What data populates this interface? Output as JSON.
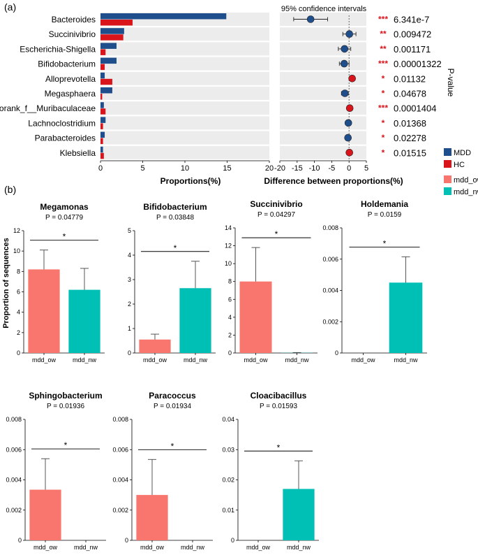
{
  "panel_a": {
    "label": "(a)",
    "ci_title": "95% confidence intervals",
    "pvalue_label": "P-value",
    "legend": [
      {
        "name": "MDD",
        "color": "#1f4e8c"
      },
      {
        "name": "HC",
        "color": "#d9141b"
      }
    ],
    "chart_data": [
      {
        "type": "bar",
        "title": "",
        "xlabel": "Proportions(%)",
        "xlim": [
          0,
          20
        ],
        "xticks": [
          0,
          5,
          10,
          15,
          20
        ],
        "categories": [
          "Bacteroides",
          "Succinivibrio",
          "Escherichia-Shigella",
          "Bifidobacterium",
          "Alloprevotella",
          "Megasphaera",
          "norank_f__Muribaculaceae",
          "Lachnoclostridium",
          "Parabacteroides",
          "Klebsiella"
        ],
        "series": [
          {
            "name": "MDD",
            "color": "#1f4e8c",
            "values": [
              14.9,
              2.8,
              1.9,
              1.9,
              0.5,
              1.4,
              0.4,
              0.6,
              0.5,
              0.3
            ]
          },
          {
            "name": "HC",
            "color": "#d9141b",
            "values": [
              3.8,
              2.7,
              0.6,
              0.5,
              1.4,
              0.2,
              0.6,
              0.3,
              0.3,
              0.4
            ]
          }
        ]
      },
      {
        "type": "scatter",
        "title": "95% confidence intervals",
        "xlabel": "Difference between proportions(%)",
        "xlim": [
          -20,
          5
        ],
        "xticks": [
          -20,
          -15,
          -10,
          -5,
          0,
          5
        ],
        "categories": [
          "Bacteroides",
          "Succinivibrio",
          "Escherichia-Shigella",
          "Bifidobacterium",
          "Alloprevotella",
          "Megasphaera",
          "norank_f__Muribaculaceae",
          "Lachnoclostridium",
          "Parabacteroides",
          "Klebsiella"
        ],
        "difference": [
          -11.1,
          0.1,
          -1.3,
          -1.4,
          0.9,
          -1.2,
          0.2,
          -0.2,
          -0.3,
          0.1
        ],
        "ci_low": [
          -16.0,
          -1.8,
          -3.1,
          -2.8,
          0.3,
          -2.2,
          -0.1,
          -0.6,
          -0.8,
          -0.1
        ],
        "ci_high": [
          -6.2,
          2.0,
          0.5,
          0.0,
          1.5,
          -0.2,
          0.5,
          0.2,
          0.2,
          0.3
        ],
        "enriched_in": [
          "MDD",
          "MDD",
          "MDD",
          "MDD",
          "HC",
          "MDD",
          "HC",
          "MDD",
          "MDD",
          "HC"
        ],
        "stars": [
          "***",
          "**",
          "**",
          "***",
          "*",
          "*",
          "***",
          "*",
          "*",
          "*"
        ],
        "pvalues": [
          "6.341e-7",
          "0.009472",
          "0.001171",
          "0.00001322",
          "0.01132",
          "0.04678",
          "0.0001404",
          "0.01368",
          "0.02278",
          "0.01515"
        ]
      }
    ]
  },
  "panel_b": {
    "label": "(b)",
    "ylabel": "Proportion of sequences",
    "legend": [
      {
        "name": "mdd_ow",
        "color": "#f8766d"
      },
      {
        "name": "mdd_nw",
        "color": "#00bfb4"
      }
    ],
    "chart_data": [
      {
        "type": "bar",
        "title": "Megamonas",
        "subtitle": "P = 0.04779",
        "categories": [
          "mdd_ow",
          "mdd_nw"
        ],
        "values": [
          8.2,
          6.2
        ],
        "errors": [
          1.9,
          2.1
        ],
        "ylim": [
          0,
          12
        ],
        "yticks": [
          "0",
          "2",
          "4",
          "6",
          "8",
          "10",
          "12"
        ],
        "sig": "*"
      },
      {
        "type": "bar",
        "title": "Bifidobacterium",
        "subtitle": "P = 0.03848",
        "categories": [
          "mdd_ow",
          "mdd_nw"
        ],
        "values": [
          0.55,
          2.65
        ],
        "errors": [
          0.22,
          1.1
        ],
        "ylim": [
          0,
          5
        ],
        "yticks": [
          "0",
          "1",
          "2",
          "3",
          "4",
          "5"
        ],
        "sig": "*"
      },
      {
        "type": "bar",
        "title": "Succinivibrio",
        "subtitle": "P = 0.04297",
        "categories": [
          "mdd_ow",
          "mdd_nw"
        ],
        "values": [
          8.0,
          0.02
        ],
        "errors": [
          3.8,
          0.03
        ],
        "ylim": [
          0,
          14
        ],
        "yticks": [
          "0",
          "2",
          "4",
          "6",
          "8",
          "10",
          "12",
          "14"
        ],
        "sig": "*"
      },
      {
        "type": "bar",
        "title": "Holdemania",
        "subtitle": "P = 0.0159",
        "categories": [
          "mdd_ow",
          "mdd_nw"
        ],
        "values": [
          0.0,
          0.0045
        ],
        "errors": [
          0.0,
          0.00165
        ],
        "ylim": [
          0,
          0.008
        ],
        "yticks": [
          "0",
          "0.002",
          "0.004",
          "0.006",
          "0.008"
        ],
        "sig": "*"
      },
      {
        "type": "bar",
        "title": "Sphingobacterium",
        "subtitle": "P = 0.01936",
        "categories": [
          "mdd_ow",
          "mdd_nw"
        ],
        "values": [
          0.00335,
          0.0
        ],
        "errors": [
          0.00205,
          0.0
        ],
        "ylim": [
          0,
          0.008
        ],
        "yticks": [
          "0",
          "0.002",
          "0.004",
          "0.006",
          "0.008"
        ],
        "sig": "*"
      },
      {
        "type": "bar",
        "title": "Paracoccus",
        "subtitle": "P = 0.01934",
        "categories": [
          "mdd_ow",
          "mdd_nw"
        ],
        "values": [
          0.003,
          0.0
        ],
        "errors": [
          0.00235,
          0.0
        ],
        "ylim": [
          0,
          0.008
        ],
        "yticks": [
          "0",
          "0.002",
          "0.004",
          "0.006",
          "0.008"
        ],
        "sig": "*"
      },
      {
        "type": "bar",
        "title": "Cloacibacillus",
        "subtitle": "P = 0.01593",
        "categories": [
          "mdd_ow",
          "mdd_nw"
        ],
        "values": [
          0.0,
          0.017
        ],
        "errors": [
          0.0,
          0.0093
        ],
        "ylim": [
          0,
          0.04
        ],
        "yticks": [
          "0",
          "0.01",
          "0.02",
          "0.03",
          "0.04"
        ],
        "sig": "*"
      }
    ]
  }
}
